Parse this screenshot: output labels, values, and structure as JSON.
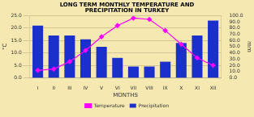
{
  "chart_data": {
    "type": "bar",
    "title": "LONG TERM MONTHLY TEMPERATURE AND\nPRECIPITATION IN TURKEY",
    "categories": [
      "I",
      "II",
      "III",
      "IV",
      "V",
      "VI",
      "VII",
      "VIII",
      "IX",
      "X",
      "XI",
      "XII"
    ],
    "xlabel": "MONTHS",
    "ylabel": "°C",
    "y2label": "mm",
    "series": [
      {
        "name": "Precipitation",
        "type": "bar",
        "axis": "y2",
        "color": "#1a2fcc",
        "values": [
          84.0,
          68.0,
          68.0,
          62.0,
          50.0,
          32.0,
          18.0,
          18.0,
          26.0,
          56.0,
          68.0,
          92.0
        ]
      },
      {
        "name": "Temperature",
        "type": "line",
        "color": "#ff00ff",
        "marker": "diamond",
        "values": [
          3.0,
          3.5,
          6.5,
          11.0,
          16.5,
          21.0,
          24.0,
          23.5,
          19.0,
          13.5,
          8.0,
          5.0
        ]
      }
    ],
    "ylim": [
      0.0,
      25.0
    ],
    "yticks": [
      {
        "value": 0,
        "label": "0.0"
      },
      {
        "value": 5,
        "label": "5.0"
      },
      {
        "value": 10,
        "label": "10.0"
      },
      {
        "value": 15,
        "label": "15.0"
      },
      {
        "value": 20,
        "label": "20.0"
      },
      {
        "value": 25,
        "label": "25.0"
      }
    ],
    "y2lim": [
      0.0,
      100.0
    ],
    "y2ticks": [
      {
        "value": 0,
        "label": "0.0"
      },
      {
        "value": 10,
        "label": "10.0"
      },
      {
        "value": 20,
        "label": "20.0"
      },
      {
        "value": 30,
        "label": "30.0"
      },
      {
        "value": 40,
        "label": "40.0"
      },
      {
        "value": 50,
        "label": "50.0"
      },
      {
        "value": 60,
        "label": "60.0"
      },
      {
        "value": 70,
        "label": "70.0"
      },
      {
        "value": 80,
        "label": "80.0"
      },
      {
        "value": 90,
        "label": "90.0"
      },
      {
        "value": 100,
        "label": "100.0"
      }
    ],
    "grid": true,
    "legend": "bottom"
  }
}
